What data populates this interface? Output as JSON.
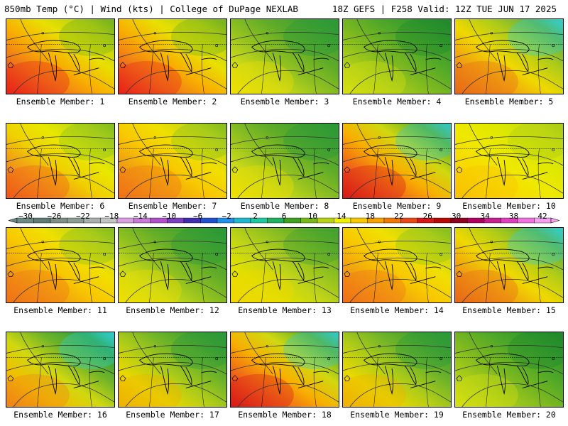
{
  "header": {
    "left_title": "850mb Temp (°C) | Wind (kts) | College of DuPage NEXLAB",
    "right_title": "18Z GEFS | F258 Valid: 12Z TUE JUN 17 2025"
  },
  "members": [
    {
      "caption": "Ensemble Member: 1",
      "scheme": "hot-west"
    },
    {
      "caption": "Ensemble Member: 2",
      "scheme": "hot-west"
    },
    {
      "caption": "Ensemble Member: 3",
      "scheme": "green-east"
    },
    {
      "caption": "Ensemble Member: 4",
      "scheme": "green-center"
    },
    {
      "caption": "Ensemble Member: 5",
      "scheme": "cool-north"
    },
    {
      "caption": "Ensemble Member: 6",
      "scheme": "warm-southwest"
    },
    {
      "caption": "Ensemble Member: 7",
      "scheme": "warm-even"
    },
    {
      "caption": "Ensemble Member: 8",
      "scheme": "green-east"
    },
    {
      "caption": "Ensemble Member: 9",
      "scheme": "hot-southwest-cool-ne"
    },
    {
      "caption": "Ensemble Member: 10",
      "scheme": "yellow-even"
    },
    {
      "caption": "Ensemble Member: 11",
      "scheme": "warm-even"
    },
    {
      "caption": "Ensemble Member: 12",
      "scheme": "green-east"
    },
    {
      "caption": "Ensemble Member: 13",
      "scheme": "yellow-green-east"
    },
    {
      "caption": "Ensemble Member: 14",
      "scheme": "warm-even"
    },
    {
      "caption": "Ensemble Member: 15",
      "scheme": "cool-north"
    },
    {
      "caption": "Ensemble Member: 16",
      "scheme": "cool-northeast"
    },
    {
      "caption": "Ensemble Member: 17",
      "scheme": "green-north"
    },
    {
      "caption": "Ensemble Member: 18",
      "scheme": "hot-southwest-cool-ne"
    },
    {
      "caption": "Ensemble Member: 19",
      "scheme": "green-north"
    },
    {
      "caption": "Ensemble Member: 20",
      "scheme": "green-center"
    }
  ],
  "colorbar": {
    "labels": [
      "−30",
      "−26",
      "−22",
      "−18",
      "−14",
      "−10",
      "−6",
      "−2",
      "2",
      "6",
      "10",
      "14",
      "18",
      "22",
      "26",
      "30",
      "34",
      "38",
      "42"
    ],
    "colors": [
      "#6e8a84",
      "#5f7a73",
      "#7f8f88",
      "#8c9c95",
      "#a8b0ac",
      "#c0c4c2",
      "#d8a0e0",
      "#c878d8",
      "#b050c8",
      "#7a40c0",
      "#4030b0",
      "#2050d0",
      "#2090e8",
      "#20b8d0",
      "#20c8a0",
      "#20b060",
      "#40a020",
      "#78b818",
      "#b8d018",
      "#f0f000",
      "#f8c800",
      "#f8a000",
      "#f07800",
      "#e84818",
      "#d81818",
      "#b80808",
      "#900020",
      "#b00060",
      "#c82090",
      "#e040c0",
      "#f070e0",
      "#f8a0f0"
    ]
  }
}
